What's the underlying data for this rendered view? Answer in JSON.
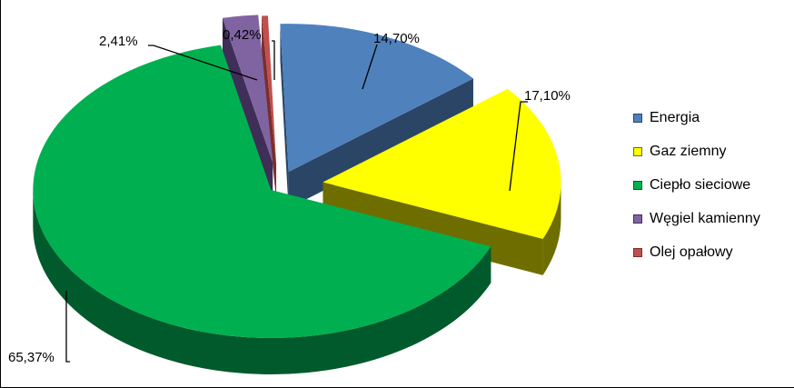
{
  "chart_data": {
    "type": "pie",
    "categories": [
      "Energia",
      "Gaz ziemny",
      "Ciepło sieciowe",
      "Węgiel kamienny",
      "Olej opałowy"
    ],
    "values": [
      14.7,
      17.1,
      65.37,
      2.41,
      0.42
    ],
    "data_labels": [
      "14,70%",
      "17,10%",
      "65,37%",
      "2,41%",
      "0,42%"
    ],
    "colors": [
      "#4F81BD",
      "#FFFF00",
      "#00B050",
      "#8064A2",
      "#C0504D"
    ],
    "side_colors": [
      "#2B4567",
      "#6E6E00",
      "#005A2C",
      "#3F2E57",
      "#7A2E2C"
    ],
    "legend_position": "right",
    "style": "3d-exploded"
  }
}
